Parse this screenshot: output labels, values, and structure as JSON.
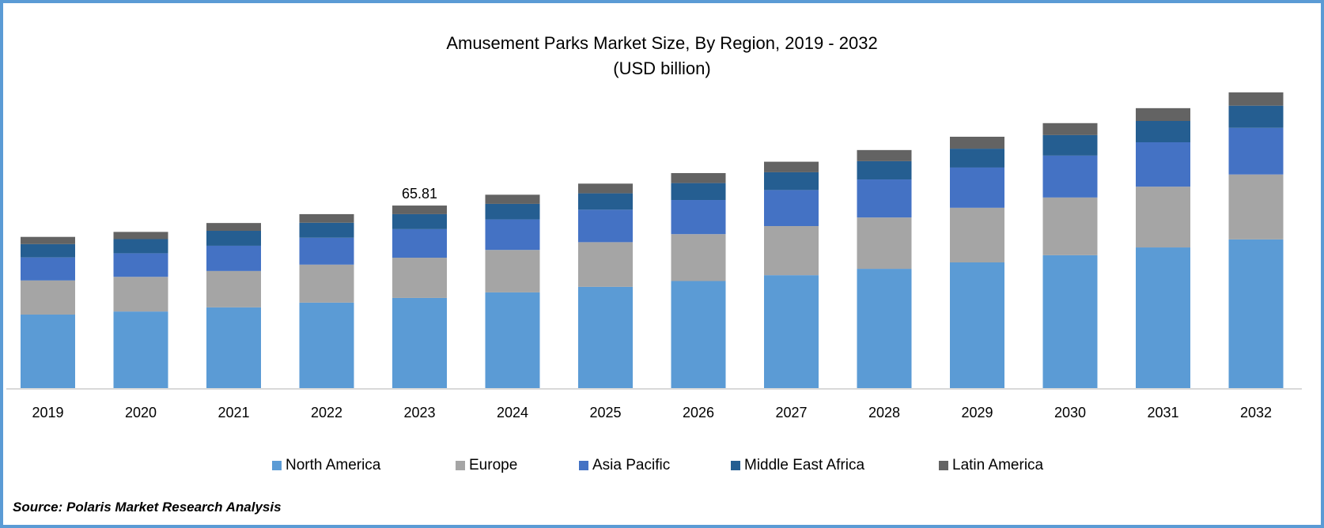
{
  "chart_data": {
    "type": "bar",
    "stacked": true,
    "title": "Amusement Parks Market Size, By Region, 2019 - 2032",
    "subtitle": "(USD billion)",
    "categories": [
      "2019",
      "2020",
      "2021",
      "2022",
      "2023",
      "2024",
      "2025",
      "2026",
      "2027",
      "2028",
      "2029",
      "2030",
      "2031",
      "2032"
    ],
    "series": [
      {
        "name": "North America",
        "color": "#5B9BD5",
        "values": [
          26.5,
          27.6,
          29.1,
          30.8,
          32.5,
          34.5,
          36.5,
          38.6,
          40.7,
          43.0,
          45.3,
          47.9,
          50.7,
          53.6
        ]
      },
      {
        "name": "Europe",
        "color": "#A5A5A5",
        "values": [
          12.3,
          12.5,
          13.1,
          13.7,
          14.5,
          15.3,
          16.1,
          16.9,
          17.7,
          18.5,
          19.7,
          20.8,
          21.9,
          23.4
        ]
      },
      {
        "name": "Asia Pacific",
        "color": "#4472C4",
        "values": [
          8.3,
          8.5,
          9.1,
          9.7,
          10.3,
          11.0,
          11.7,
          12.3,
          13.0,
          13.7,
          14.5,
          15.1,
          16.0,
          16.8
        ]
      },
      {
        "name": "Middle East Africa",
        "color": "#255E91",
        "values": [
          4.8,
          5.1,
          5.4,
          5.4,
          5.4,
          5.6,
          5.9,
          6.1,
          6.4,
          6.6,
          6.8,
          7.4,
          7.7,
          8.0
        ]
      },
      {
        "name": "Latin America",
        "color": "#636363",
        "values": [
          2.6,
          2.6,
          2.8,
          3.1,
          3.1,
          3.3,
          3.5,
          3.6,
          3.8,
          4.0,
          4.3,
          4.3,
          4.6,
          4.8
        ]
      }
    ],
    "annotations": [
      {
        "category": "2023",
        "text": "65.81"
      }
    ],
    "ylim": [
      0,
      110
    ],
    "y_axis_visible": false,
    "grid": false,
    "legend": "bottom"
  },
  "source": "Source: Polaris Market Research Analysis",
  "frame_color": "#5B9BD5"
}
